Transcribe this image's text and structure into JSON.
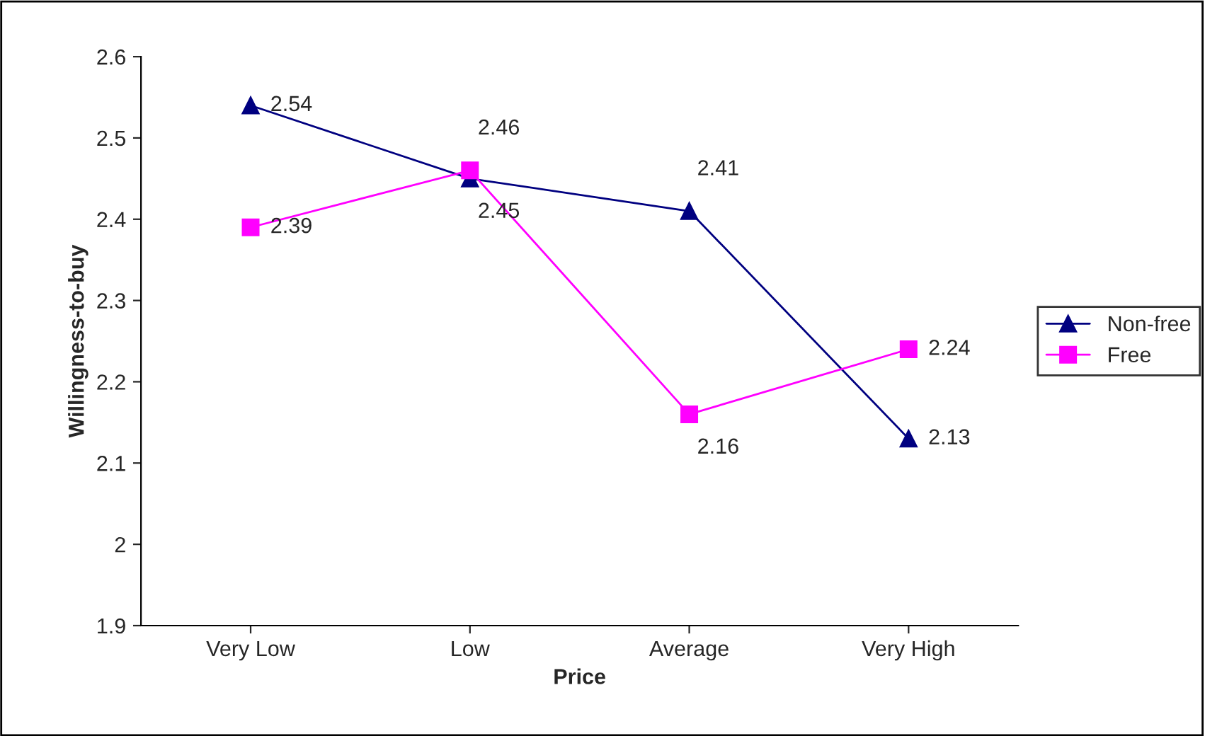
{
  "chart_data": {
    "type": "line",
    "xlabel": "Price",
    "ylabel": "Willingness-to-buy",
    "categories": [
      "Very Low",
      "Low",
      "Average",
      "Very High"
    ],
    "series": [
      {
        "name": "Non-free",
        "color": "#000080",
        "marker": "triangle",
        "values": [
          2.54,
          2.45,
          2.41,
          2.13
        ]
      },
      {
        "name": "Free",
        "color": "#ff00ff",
        "marker": "square",
        "values": [
          2.39,
          2.46,
          2.16,
          2.24
        ]
      }
    ],
    "ylim": [
      1.9,
      2.6
    ],
    "yticks": [
      1.9,
      2,
      2.1,
      2.2,
      2.3,
      2.4,
      2.5,
      2.6
    ],
    "data_labels": true,
    "grid": false,
    "legend": "right"
  }
}
